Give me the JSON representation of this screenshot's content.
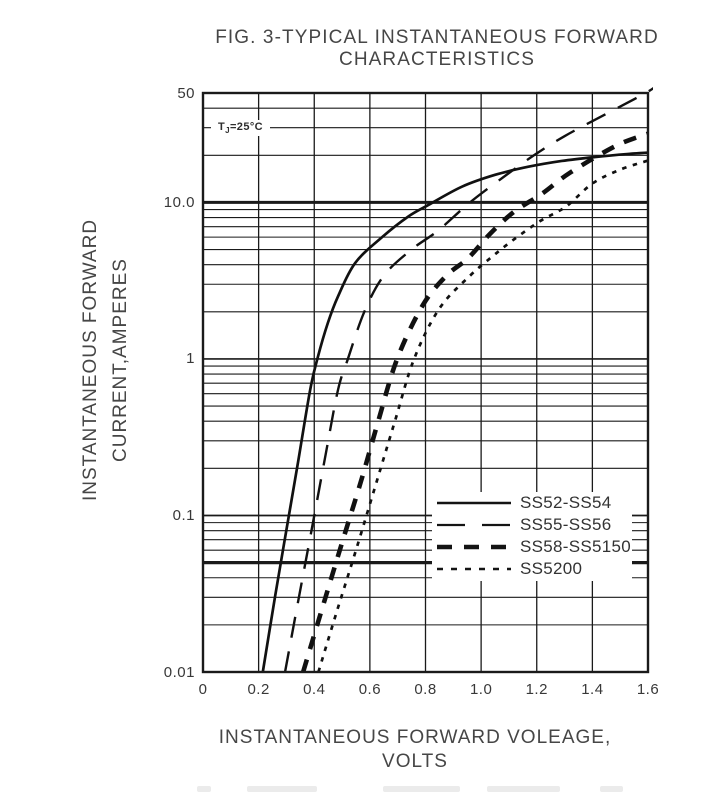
{
  "figure": {
    "title_line1": "FIG. 3-TYPICAL INSTANTANEOUS FORWARD",
    "title_line2": "CHARACTERISTICS",
    "y_axis_title_line1": "INSTANTANEOUS FORWARD",
    "y_axis_title_line2": "CURRENT,AMPERES",
    "x_axis_title_line1": "INSTANTANEOUS FORWARD VOLEAGE,",
    "x_axis_title_line2": "VOLTS",
    "annotation": {
      "prefix": "T",
      "sub": "J",
      "suffix": "=25°C"
    }
  },
  "legend": {
    "items": [
      {
        "label": "SS52-SS54",
        "style": "solid"
      },
      {
        "label": "SS55-SS56",
        "style": "long-dash"
      },
      {
        "label": "SS58-SS5150",
        "style": "thick-dash"
      },
      {
        "label": "SS5200",
        "style": "fine-dash"
      }
    ]
  },
  "colors": {
    "line": "#1a1a1a",
    "curve": "#111111",
    "text": "#464646",
    "background": "#ffffff"
  },
  "chart_data": {
    "type": "line",
    "title": "FIG. 3-TYPICAL INSTANTANEOUS FORWARD CHARACTERISTICS",
    "xlabel": "INSTANTANEOUS FORWARD VOLEAGE, VOLTS",
    "ylabel": "INSTANTANEOUS FORWARD CURRENT,AMPERES",
    "annotation": "TJ=25°C",
    "grid": true,
    "legend_position": "inside lower right",
    "x_axis": {
      "min": 0,
      "max": 1.6,
      "scale": "linear",
      "ticks": [
        {
          "v": 0,
          "label": "0"
        },
        {
          "v": 0.2,
          "label": "0.2"
        },
        {
          "v": 0.4,
          "label": "0.4"
        },
        {
          "v": 0.6,
          "label": "0.6"
        },
        {
          "v": 0.8,
          "label": "0.8"
        },
        {
          "v": 1.0,
          "label": "1.0"
        },
        {
          "v": 1.2,
          "label": "1.2"
        },
        {
          "v": 1.4,
          "label": "1.4"
        },
        {
          "v": 1.6,
          "label": "1.6"
        }
      ]
    },
    "y_axis": {
      "min": 0.01,
      "max": 50,
      "scale": "log",
      "ticks": [
        {
          "v": 50,
          "label": "50"
        },
        {
          "v": 10,
          "label": "10.0"
        },
        {
          "v": 1,
          "label": "1"
        },
        {
          "v": 0.1,
          "label": "0.1"
        },
        {
          "v": 0.01,
          "label": "0.01"
        }
      ],
      "emphasized_gridlines": [
        10,
        0.05
      ]
    },
    "series": [
      {
        "name": "SS52-SS54",
        "style": "solid",
        "points": [
          [
            0.215,
            0.01
          ],
          [
            0.26,
            0.031
          ],
          [
            0.3,
            0.081
          ],
          [
            0.34,
            0.21
          ],
          [
            0.385,
            0.63
          ],
          [
            0.413,
            1.03
          ],
          [
            0.449,
            1.7
          ],
          [
            0.485,
            2.5
          ],
          [
            0.547,
            4.1
          ],
          [
            0.644,
            6.0
          ],
          [
            0.737,
            8.1
          ],
          [
            0.809,
            9.6
          ],
          [
            0.931,
            12.6
          ],
          [
            1.05,
            15.0
          ],
          [
            1.17,
            16.9
          ],
          [
            1.29,
            18.4
          ],
          [
            1.41,
            19.5
          ],
          [
            1.53,
            20.4
          ],
          [
            1.6,
            20.8
          ]
        ]
      },
      {
        "name": "SS55-SS56",
        "style": "long-dash",
        "points": [
          [
            0.295,
            0.01
          ],
          [
            0.34,
            0.027
          ],
          [
            0.39,
            0.08
          ],
          [
            0.44,
            0.24
          ],
          [
            0.485,
            0.63
          ],
          [
            0.521,
            1.0
          ],
          [
            0.58,
            2.0
          ],
          [
            0.65,
            3.4
          ],
          [
            0.75,
            5.0
          ],
          [
            0.845,
            6.6
          ],
          [
            0.96,
            10.0
          ],
          [
            1.08,
            14.5
          ],
          [
            1.19,
            20.0
          ],
          [
            1.3,
            26.5
          ],
          [
            1.44,
            36.0
          ],
          [
            1.6,
            51.0
          ],
          [
            1.64,
            58.0
          ]
        ]
      },
      {
        "name": "SS58-SS5150",
        "style": "thick-dash",
        "points": [
          [
            0.36,
            0.01
          ],
          [
            0.43,
            0.026
          ],
          [
            0.5,
            0.067
          ],
          [
            0.57,
            0.17
          ],
          [
            0.63,
            0.4
          ],
          [
            0.698,
            1.0
          ],
          [
            0.79,
            2.2
          ],
          [
            0.875,
            3.4
          ],
          [
            0.953,
            4.4
          ],
          [
            1.032,
            6.3
          ],
          [
            1.118,
            8.7
          ],
          [
            1.22,
            11.4
          ],
          [
            1.32,
            15.5
          ],
          [
            1.485,
            23.0
          ],
          [
            1.6,
            27.5
          ]
        ]
      },
      {
        "name": "SS5200",
        "style": "fine-dash",
        "points": [
          [
            0.415,
            0.01
          ],
          [
            0.48,
            0.024
          ],
          [
            0.55,
            0.06
          ],
          [
            0.62,
            0.155
          ],
          [
            0.69,
            0.4
          ],
          [
            0.759,
            1.0
          ],
          [
            0.85,
            2.1
          ],
          [
            0.96,
            3.4
          ],
          [
            1.046,
            4.6
          ],
          [
            1.118,
            5.8
          ],
          [
            1.212,
            7.6
          ],
          [
            1.305,
            9.4
          ],
          [
            1.4,
            13.2
          ],
          [
            1.5,
            16.2
          ],
          [
            1.6,
            18.5
          ]
        ]
      }
    ]
  }
}
